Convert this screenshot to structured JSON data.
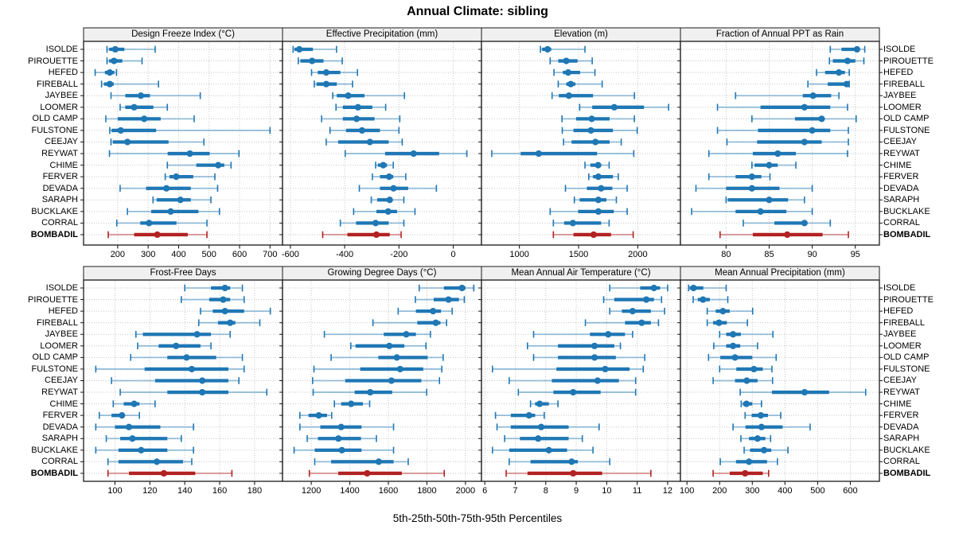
{
  "title": "Annual Climate: sibling",
  "caption": "5th-25th-50th-75th-95th Percentiles",
  "colors": {
    "series": "#1f77b4",
    "highlight": "#b22222",
    "strip_bg": "#f0f0f0",
    "grid": "#c6c6c6",
    "border": "#1a1a1a",
    "text": "#000000"
  },
  "chart_data": {
    "type": "dot-interval percentile lattice (5th-25th-50th-75th-95th)",
    "percentile_labels": [
      "5th",
      "25th",
      "50th",
      "75th",
      "95th"
    ],
    "legend_position": "none",
    "grid": "dotted",
    "sites": [
      "ISOLDE",
      "PIROUETTE",
      "HEFED",
      "FIREBALL",
      "JAYBEE",
      "LOOMER",
      "OLD CAMP",
      "FULSTONE",
      "CEEJAY",
      "REYWAT",
      "CHIME",
      "FERVER",
      "DEVADA",
      "SARAPH",
      "BUCKLAKE",
      "CORRAL",
      "BOMBADIL"
    ],
    "highlight_site": "BOMBADIL",
    "panels": [
      {
        "title": "Design Freeze Index (°C)",
        "row": 0,
        "col": 0,
        "xlim": [
          88,
          741
        ],
        "ticks": [
          200,
          300,
          400,
          500,
          600,
          700
        ],
        "values": [
          [
            165,
            172,
            192,
            222,
            323
          ],
          [
            165,
            172,
            188,
            215,
            280
          ],
          [
            126,
            158,
            174,
            189,
            196
          ],
          [
            147,
            155,
            174,
            187,
            334
          ],
          [
            178,
            225,
            276,
            306,
            471
          ],
          [
            208,
            225,
            254,
            317,
            363
          ],
          [
            161,
            200,
            287,
            341,
            451
          ],
          [
            174,
            180,
            210,
            326,
            700
          ],
          [
            178,
            184,
            232,
            367,
            483
          ],
          [
            173,
            364,
            437,
            502,
            598
          ],
          [
            363,
            458,
            530,
            550,
            572
          ],
          [
            356,
            370,
            392,
            448,
            519
          ],
          [
            208,
            293,
            360,
            440,
            528
          ],
          [
            316,
            328,
            406,
            440,
            506
          ],
          [
            232,
            310,
            374,
            465,
            534
          ],
          [
            197,
            274,
            303,
            393,
            493
          ],
          [
            169,
            254,
            330,
            430,
            493
          ]
        ]
      },
      {
        "title": "Effective Precipitation (mm)",
        "row": 0,
        "col": 1,
        "xlim": [
          -629,
          104
        ],
        "ticks": [
          -600,
          -400,
          -200,
          0
        ],
        "values": [
          [
            -590,
            -585,
            -567,
            -517,
            -430
          ],
          [
            -571,
            -563,
            -520,
            -478,
            -409
          ],
          [
            -522,
            -499,
            -468,
            -416,
            -353
          ],
          [
            -512,
            -504,
            -468,
            -429,
            -371
          ],
          [
            -444,
            -429,
            -387,
            -327,
            -180
          ],
          [
            -432,
            -407,
            -351,
            -298,
            -249
          ],
          [
            -485,
            -407,
            -356,
            -290,
            -197
          ],
          [
            -454,
            -395,
            -336,
            -270,
            -200
          ],
          [
            -468,
            -424,
            -307,
            -238,
            -188
          ],
          [
            -398,
            -251,
            -146,
            -52,
            50
          ],
          [
            -286,
            -278,
            -258,
            -244,
            -221
          ],
          [
            -298,
            -270,
            -236,
            -221,
            -175
          ],
          [
            -346,
            -270,
            -220,
            -166,
            -62
          ],
          [
            -302,
            -280,
            -234,
            -225,
            -182
          ],
          [
            -367,
            -283,
            -240,
            -207,
            -141
          ],
          [
            -416,
            -358,
            -286,
            -238,
            -182
          ],
          [
            -481,
            -390,
            -283,
            -234,
            -192
          ]
        ]
      },
      {
        "title": "Elevation (m)",
        "row": 0,
        "col": 2,
        "xlim": [
          680,
          2360
        ],
        "ticks": [
          1000,
          1500,
          2000
        ],
        "values": [
          [
            1178,
            1192,
            1238,
            1269,
            1554
          ],
          [
            1260,
            1328,
            1396,
            1491,
            1615
          ],
          [
            1292,
            1367,
            1412,
            1513,
            1638
          ],
          [
            1328,
            1396,
            1434,
            1473,
            1699
          ],
          [
            1276,
            1333,
            1418,
            1622,
            1971
          ],
          [
            1509,
            1615,
            1801,
            2052,
            2260
          ],
          [
            1360,
            1479,
            1611,
            1762,
            1971
          ],
          [
            1362,
            1457,
            1604,
            1790,
            1995
          ],
          [
            1373,
            1441,
            1642,
            1762,
            1860
          ],
          [
            767,
            1011,
            1163,
            1656,
            1966
          ],
          [
            1554,
            1600,
            1665,
            1690,
            1758
          ],
          [
            1586,
            1622,
            1667,
            1790,
            1835
          ],
          [
            1389,
            1570,
            1690,
            1785,
            1910
          ],
          [
            1464,
            1509,
            1667,
            1735,
            1819
          ],
          [
            1260,
            1496,
            1667,
            1797,
            1910
          ],
          [
            1287,
            1378,
            1452,
            1690,
            1758
          ],
          [
            1287,
            1457,
            1627,
            1774,
            1961
          ]
        ]
      },
      {
        "title": "Fraction of Annual PPT as Rain",
        "row": 0,
        "col": 3,
        "xlim": [
          74.7,
          97.8
        ],
        "ticks": [
          80,
          85,
          90,
          95
        ],
        "values": [
          [
            92.1,
            93.4,
            95.2,
            95.5,
            96.1
          ],
          [
            92.0,
            92.4,
            94.1,
            95.0,
            96.0
          ],
          [
            90.5,
            91.5,
            93.1,
            93.8,
            94.3
          ],
          [
            89.5,
            91.8,
            94.0,
            94.1,
            94.3
          ],
          [
            81.1,
            88.9,
            90.1,
            92.2,
            93.1
          ],
          [
            79.0,
            84.0,
            89.1,
            92.1,
            94.1
          ],
          [
            83.0,
            88.0,
            91.1,
            91.3,
            95.1
          ],
          [
            79.0,
            83.7,
            90.0,
            92.1,
            94.2
          ],
          [
            80.1,
            83.6,
            89.1,
            91.1,
            94.2
          ],
          [
            78.0,
            83.1,
            86.0,
            88.1,
            94.1
          ],
          [
            83.0,
            83.3,
            85.0,
            86.0,
            88.1
          ],
          [
            78.0,
            81.1,
            83.0,
            84.1,
            85.1
          ],
          [
            76.5,
            80.0,
            83.0,
            86.2,
            90.0
          ],
          [
            80.0,
            80.2,
            85.0,
            87.2,
            89.1
          ],
          [
            76.0,
            81.1,
            84.0,
            87.0,
            90.0
          ],
          [
            82.0,
            85.6,
            89.1,
            89.4,
            92.1
          ],
          [
            79.3,
            83.1,
            87.1,
            91.2,
            94.2
          ]
        ]
      },
      {
        "title": "Frost-Free Days",
        "row": 1,
        "col": 0,
        "xlim": [
          82,
          196
        ],
        "ticks": [
          100,
          120,
          140,
          160,
          180
        ],
        "values": [
          [
            140,
            155,
            163,
            166,
            173
          ],
          [
            138,
            154,
            162,
            166,
            174
          ],
          [
            149,
            156,
            163,
            174,
            189
          ],
          [
            148,
            159,
            166,
            169,
            183
          ],
          [
            112,
            116,
            147,
            155,
            166
          ],
          [
            113,
            125,
            135,
            149,
            155
          ],
          [
            109,
            130,
            141,
            158,
            173
          ],
          [
            89,
            117,
            144,
            165,
            174
          ],
          [
            98,
            123,
            150,
            165,
            171
          ],
          [
            103,
            130,
            150,
            165,
            187
          ],
          [
            99,
            105,
            111,
            114,
            123
          ],
          [
            91,
            98,
            104,
            105,
            114
          ],
          [
            89,
            100,
            108,
            126,
            145
          ],
          [
            95,
            103,
            110,
            130,
            138
          ],
          [
            89,
            102,
            115,
            130,
            145
          ],
          [
            96,
            102,
            124,
            139,
            144
          ],
          [
            96,
            108,
            128,
            146,
            167
          ]
        ]
      },
      {
        "title": "Growing Degree Days (°C)",
        "row": 1,
        "col": 1,
        "xlim": [
          1051,
          2083
        ],
        "ticks": [
          1200,
          1400,
          1600,
          1800,
          2000
        ],
        "values": [
          [
            1760,
            1888,
            1982,
            2000,
            2043
          ],
          [
            1740,
            1835,
            1912,
            1966,
            1994
          ],
          [
            1651,
            1743,
            1832,
            1873,
            1931
          ],
          [
            1520,
            1750,
            1846,
            1870,
            1902
          ],
          [
            1268,
            1576,
            1693,
            1743,
            1818
          ],
          [
            1405,
            1430,
            1605,
            1683,
            1795
          ],
          [
            1303,
            1548,
            1644,
            1804,
            1884
          ],
          [
            1214,
            1454,
            1661,
            1781,
            1877
          ],
          [
            1207,
            1376,
            1616,
            1771,
            1865
          ],
          [
            1210,
            1425,
            1506,
            1620,
            1799
          ],
          [
            1320,
            1355,
            1407,
            1468,
            1503
          ],
          [
            1141,
            1186,
            1239,
            1282,
            1306
          ],
          [
            1141,
            1247,
            1355,
            1461,
            1627
          ],
          [
            1179,
            1235,
            1341,
            1458,
            1538
          ],
          [
            1111,
            1218,
            1359,
            1461,
            1627
          ],
          [
            1218,
            1303,
            1550,
            1627,
            1703
          ],
          [
            1190,
            1340,
            1490,
            1670,
            1890
          ]
        ]
      },
      {
        "title": "Mean Annual Air Temperature (°C)",
        "row": 1,
        "col": 2,
        "xlim": [
          5.89,
          12.42
        ],
        "ticks": [
          6,
          7,
          8,
          9,
          10,
          11,
          12
        ],
        "values": [
          [
            10.1,
            11.1,
            11.55,
            11.75,
            12.0
          ],
          [
            9.9,
            10.25,
            11.3,
            11.55,
            11.8
          ],
          [
            10.1,
            10.5,
            10.85,
            11.45,
            11.9
          ],
          [
            9.3,
            10.6,
            11.15,
            11.45,
            11.7
          ],
          [
            7.6,
            9.45,
            10.05,
            10.6,
            10.85
          ],
          [
            7.4,
            8.4,
            9.6,
            10.25,
            10.45
          ],
          [
            7.6,
            8.4,
            9.6,
            10.3,
            11.25
          ],
          [
            6.25,
            8.35,
            9.95,
            10.75,
            11.2
          ],
          [
            6.8,
            8.2,
            9.7,
            10.4,
            10.95
          ],
          [
            7.1,
            8.25,
            8.9,
            9.8,
            10.95
          ],
          [
            7.5,
            7.65,
            7.8,
            8.1,
            8.4
          ],
          [
            6.35,
            6.85,
            7.45,
            7.65,
            7.95
          ],
          [
            6.4,
            6.85,
            7.85,
            8.75,
            9.75
          ],
          [
            6.65,
            7.15,
            7.75,
            8.75,
            9.2
          ],
          [
            6.25,
            6.8,
            8.1,
            8.7,
            9.55
          ],
          [
            6.8,
            7.5,
            8.85,
            9.05,
            10.1
          ],
          [
            6.7,
            7.4,
            8.9,
            9.85,
            11.45
          ]
        ]
      },
      {
        "title": "Mean Annual Precipitation (mm)",
        "row": 1,
        "col": 3,
        "xlim": [
          80,
          689
        ],
        "ticks": [
          100,
          200,
          300,
          400,
          500,
          600
        ],
        "values": [
          [
            105,
            108,
            120,
            150,
            220
          ],
          [
            119,
            133,
            149,
            170,
            225
          ],
          [
            162,
            188,
            210,
            231,
            301
          ],
          [
            162,
            180,
            198,
            222,
            285
          ],
          [
            200,
            220,
            241,
            265,
            363
          ],
          [
            182,
            220,
            241,
            263,
            316
          ],
          [
            166,
            202,
            247,
            300,
            373
          ],
          [
            200,
            251,
            305,
            332,
            360
          ],
          [
            180,
            247,
            283,
            316,
            362
          ],
          [
            263,
            360,
            460,
            535,
            647
          ],
          [
            266,
            271,
            282,
            300,
            328
          ],
          [
            278,
            298,
            326,
            348,
            387
          ],
          [
            241,
            279,
            328,
            393,
            477
          ],
          [
            265,
            290,
            316,
            340,
            356
          ],
          [
            275,
            293,
            336,
            358,
            409
          ],
          [
            202,
            250,
            290,
            345,
            377
          ],
          [
            180,
            231,
            278,
            332,
            350
          ]
        ]
      }
    ]
  }
}
